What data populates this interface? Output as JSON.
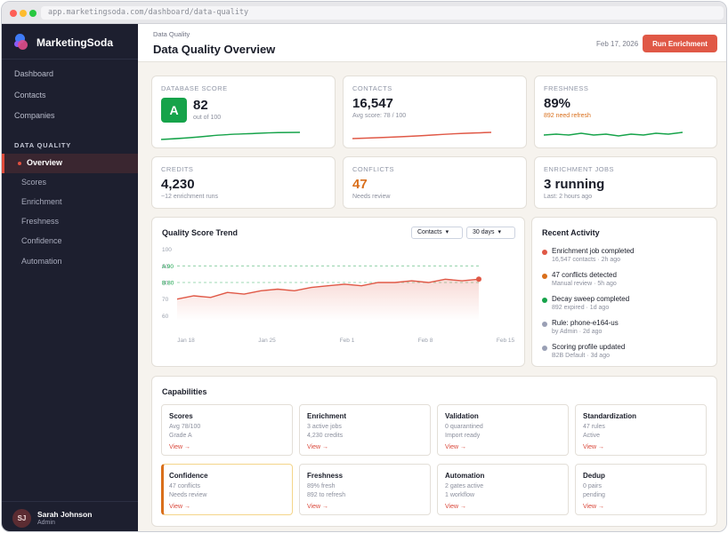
{
  "browser": {
    "url": "app.marketingsoda.com/dashboard/data-quality"
  },
  "sidebar": {
    "brand": "MarketingSoda",
    "nav": [
      {
        "label": "Dashboard"
      },
      {
        "label": "Contacts"
      },
      {
        "label": "Companies"
      }
    ],
    "section_label": "DATA QUALITY",
    "sub_items": [
      {
        "label": "Overview",
        "active": true
      },
      {
        "label": "Scores"
      },
      {
        "label": "Enrichment"
      },
      {
        "label": "Freshness"
      },
      {
        "label": "Confidence"
      },
      {
        "label": "Automation"
      }
    ],
    "user": {
      "initials": "SJ",
      "name": "Sarah Johnson",
      "role": "Admin"
    }
  },
  "header": {
    "breadcrumb": "Data Quality",
    "title": "Data Quality Overview",
    "date": "Feb 17, 2026",
    "cta_label": "Run Enrichment"
  },
  "kpis": [
    {
      "label": "DATABASE SCORE",
      "grade": "A",
      "value": "82",
      "sub": "out of 100",
      "spark_color": "#16a34a"
    },
    {
      "label": "CONTACTS",
      "value": "16,547",
      "sub": "Avg score: 78 / 100",
      "spark_color": "#e05846"
    },
    {
      "label": "FRESHNESS",
      "value": "89%",
      "sub": "892 need refresh",
      "sub_color": "#d96f1b",
      "spark_color": "#16a34a"
    },
    {
      "label": "CREDITS",
      "value": "4,230",
      "sub": "~12 enrichment runs"
    },
    {
      "label": "CONFLICTS",
      "value": "47",
      "value_color": "#d96f1b",
      "sub": "Needs review"
    },
    {
      "label": "ENRICHMENT JOBS",
      "value": "3 running",
      "sub": "Last: 2 hours ago"
    }
  ],
  "trend": {
    "title": "Quality Score Trend",
    "filter_entity": "Contacts",
    "filter_range": "30 days"
  },
  "chart_data": {
    "type": "area",
    "title": "Quality Score Trend",
    "x_ticks": [
      "Jan 18",
      "Jan 25",
      "Feb 1",
      "Feb 8",
      "Feb 15"
    ],
    "y_ticks": [
      60,
      70,
      80,
      90,
      100
    ],
    "ylim": [
      57,
      103
    ],
    "thresholds": [
      {
        "label": "A 90",
        "value": 90,
        "color": "#16a34a"
      },
      {
        "label": "B 80",
        "value": 80,
        "color": "#16a34a"
      }
    ],
    "series": [
      {
        "values": [
          70,
          72,
          71,
          74,
          73,
          75,
          76,
          75,
          77,
          78,
          79,
          78,
          80,
          80,
          81,
          80,
          82,
          81,
          82
        ]
      }
    ],
    "color": "#e05846"
  },
  "activity": {
    "title": "Recent Activity",
    "items": [
      {
        "title": "Enrichment job completed",
        "sub": "16,547 contacts · 2h ago",
        "color": "#e05846"
      },
      {
        "title": "47 conflicts detected",
        "sub": "Manual review · 5h ago",
        "color": "#d96f1b"
      },
      {
        "title": "Decay sweep completed",
        "sub": "892 expired · 1d ago",
        "color": "#16a34a"
      },
      {
        "title": "Rule: phone-e164-us",
        "sub": "by Admin · 2d ago",
        "color": "#9aa0b5"
      },
      {
        "title": "Scoring profile updated",
        "sub": "B2B Default · 3d ago",
        "color": "#9aa0b5"
      }
    ]
  },
  "capabilities": {
    "title": "Capabilities",
    "link_label": "View →",
    "items": [
      {
        "name": "Scores",
        "line1": "Avg 78/100",
        "line2": "Grade A"
      },
      {
        "name": "Enrichment",
        "line1": "3 active jobs",
        "line2": "4,230 credits"
      },
      {
        "name": "Validation",
        "line1": "0 quarantined",
        "line2": "Import ready"
      },
      {
        "name": "Standardization",
        "line1": "47 rules",
        "line2": "Active"
      },
      {
        "name": "Confidence",
        "line1": "47 conflicts",
        "line2": "Needs review",
        "highlight": true
      },
      {
        "name": "Freshness",
        "line1": "89% fresh",
        "line2": "892 to refresh"
      },
      {
        "name": "Automation",
        "line1": "2 gates active",
        "line2": "1 workflow"
      },
      {
        "name": "Dedup",
        "line1": "0 pairs",
        "line2": "pending"
      }
    ]
  }
}
